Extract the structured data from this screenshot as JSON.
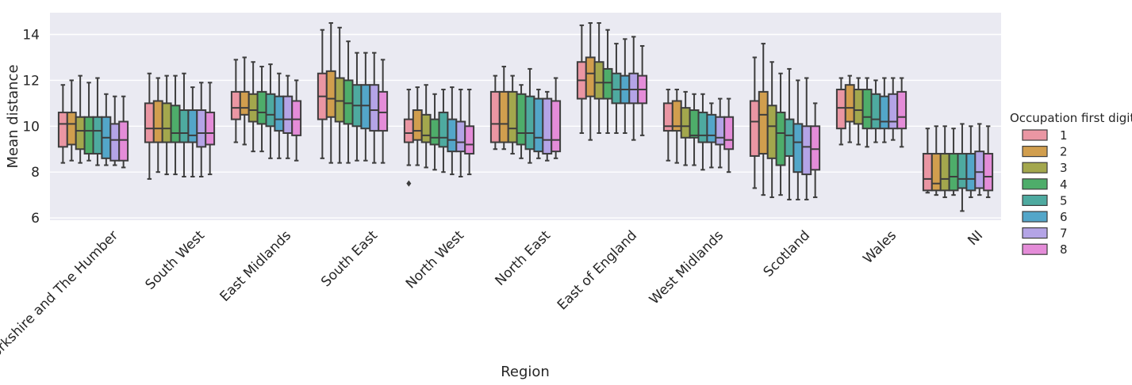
{
  "chart_data": {
    "type": "box",
    "xlabel": "Region",
    "ylabel": "Mean distance",
    "ylim": [
      5.9,
      14.95
    ],
    "yticks": [
      6,
      8,
      10,
      12,
      14
    ],
    "grid": true,
    "legend": {
      "title": "Occupation first digit",
      "placement": "right",
      "entries": [
        "1",
        "2",
        "3",
        "4",
        "5",
        "6",
        "7",
        "8"
      ]
    },
    "series_colors": [
      "#ea96a3",
      "#d19e4e",
      "#a3a74d",
      "#4ead6a",
      "#4eaaa0",
      "#53a6c9",
      "#b4a4e6",
      "#e48cd8"
    ],
    "box_fields": [
      "whisker_low",
      "q1",
      "median",
      "q3",
      "whisker_high"
    ],
    "categories": [
      {
        "name": "Yorkshire and The Humber",
        "boxes": [
          [
            8.4,
            9.1,
            10.1,
            10.6,
            11.8
          ],
          [
            8.5,
            9.2,
            10.1,
            10.6,
            12.0
          ],
          [
            8.4,
            9.0,
            9.8,
            10.4,
            12.2
          ],
          [
            8.5,
            8.8,
            9.8,
            10.4,
            11.9
          ],
          [
            8.3,
            8.8,
            9.8,
            10.4,
            12.1
          ],
          [
            8.3,
            8.6,
            9.5,
            10.4,
            11.4
          ],
          [
            8.3,
            8.5,
            9.4,
            10.1,
            11.3
          ],
          [
            8.2,
            8.5,
            9.4,
            10.2,
            11.3
          ]
        ],
        "outliers": [
          [],
          [],
          [],
          [],
          [],
          [],
          [],
          []
        ]
      },
      {
        "name": "South West",
        "boxes": [
          [
            7.7,
            9.3,
            9.9,
            11.0,
            12.3
          ],
          [
            8.0,
            9.3,
            9.9,
            11.1,
            12.1
          ],
          [
            7.9,
            9.3,
            9.9,
            11.0,
            12.2
          ],
          [
            7.9,
            9.3,
            9.7,
            10.9,
            12.2
          ],
          [
            7.8,
            9.3,
            9.7,
            10.7,
            12.3
          ],
          [
            7.8,
            9.3,
            9.6,
            10.7,
            11.7
          ],
          [
            7.8,
            9.1,
            9.7,
            10.7,
            11.9
          ],
          [
            7.9,
            9.2,
            9.7,
            10.6,
            11.9
          ]
        ],
        "outliers": [
          [],
          [],
          [],
          [],
          [],
          [],
          [],
          []
        ]
      },
      {
        "name": "East Midlands",
        "boxes": [
          [
            9.3,
            10.3,
            10.8,
            11.5,
            12.9
          ],
          [
            9.2,
            10.5,
            10.8,
            11.5,
            13.0
          ],
          [
            8.9,
            10.2,
            10.7,
            11.4,
            12.8
          ],
          [
            8.9,
            10.1,
            10.6,
            11.5,
            12.6
          ],
          [
            8.6,
            10.0,
            10.5,
            11.4,
            12.7
          ],
          [
            8.6,
            9.8,
            10.3,
            11.3,
            12.3
          ],
          [
            8.6,
            9.7,
            10.3,
            11.3,
            12.2
          ],
          [
            8.5,
            9.6,
            10.3,
            11.1,
            12.0
          ]
        ],
        "outliers": [
          [],
          [],
          [],
          [],
          [],
          [],
          [],
          []
        ]
      },
      {
        "name": "South East",
        "boxes": [
          [
            8.6,
            10.3,
            11.3,
            12.3,
            14.2
          ],
          [
            8.4,
            10.4,
            11.2,
            12.4,
            14.5
          ],
          [
            8.4,
            10.2,
            11.1,
            12.1,
            14.3
          ],
          [
            8.4,
            10.1,
            11.0,
            12.0,
            13.7
          ],
          [
            8.5,
            10.0,
            10.9,
            11.8,
            13.2
          ],
          [
            8.5,
            9.9,
            10.9,
            11.8,
            13.2
          ],
          [
            8.4,
            9.8,
            10.7,
            11.8,
            13.2
          ],
          [
            8.4,
            9.8,
            10.6,
            11.5,
            12.9
          ]
        ],
        "outliers": [
          [],
          [],
          [],
          [],
          [],
          [],
          [],
          []
        ]
      },
      {
        "name": "North West",
        "boxes": [
          [
            8.3,
            9.3,
            9.7,
            10.3,
            11.6
          ],
          [
            8.3,
            9.4,
            9.8,
            10.7,
            11.7
          ],
          [
            8.2,
            9.3,
            9.6,
            10.5,
            11.8
          ],
          [
            8.1,
            9.2,
            9.5,
            10.3,
            11.4
          ],
          [
            8.0,
            9.1,
            9.5,
            10.6,
            11.6
          ],
          [
            7.9,
            8.9,
            9.4,
            10.3,
            11.7
          ],
          [
            7.8,
            8.9,
            9.3,
            10.2,
            11.6
          ],
          [
            7.9,
            8.8,
            9.2,
            10.0,
            11.6
          ]
        ],
        "outliers": [
          [
            7.5
          ],
          [],
          [],
          [],
          [],
          [],
          [],
          []
        ]
      },
      {
        "name": "North East",
        "boxes": [
          [
            9.0,
            9.3,
            10.1,
            11.5,
            12.2
          ],
          [
            9.0,
            9.3,
            10.1,
            11.5,
            12.6
          ],
          [
            8.8,
            9.3,
            9.9,
            11.5,
            12.2
          ],
          [
            8.6,
            9.2,
            9.7,
            11.4,
            11.8
          ],
          [
            8.4,
            9.0,
            9.7,
            11.3,
            12.5
          ],
          [
            8.6,
            8.9,
            9.5,
            11.2,
            11.6
          ],
          [
            8.5,
            8.8,
            9.4,
            11.2,
            11.5
          ],
          [
            8.6,
            8.9,
            9.4,
            11.1,
            12.1
          ]
        ],
        "outliers": [
          [],
          [],
          [],
          [],
          [],
          [],
          [],
          []
        ]
      },
      {
        "name": "East of England",
        "boxes": [
          [
            9.7,
            11.2,
            12.0,
            12.8,
            14.4
          ],
          [
            9.4,
            11.3,
            12.3,
            13.0,
            14.5
          ],
          [
            9.7,
            11.2,
            11.9,
            12.8,
            14.5
          ],
          [
            9.7,
            11.2,
            11.9,
            12.5,
            14.2
          ],
          [
            9.7,
            11.0,
            11.6,
            12.3,
            13.6
          ],
          [
            9.7,
            11.0,
            11.6,
            12.2,
            13.8
          ],
          [
            9.4,
            11.0,
            11.6,
            12.3,
            13.9
          ],
          [
            9.6,
            11.0,
            11.6,
            12.2,
            13.5
          ]
        ],
        "outliers": [
          [],
          [],
          [],
          [],
          [],
          [],
          [],
          []
        ]
      },
      {
        "name": "West Midlands",
        "boxes": [
          [
            8.5,
            9.8,
            10.0,
            11.0,
            11.6
          ],
          [
            8.4,
            9.8,
            10.0,
            11.1,
            11.6
          ],
          [
            8.3,
            9.5,
            10.0,
            10.8,
            11.5
          ],
          [
            8.3,
            9.5,
            9.6,
            10.7,
            11.4
          ],
          [
            8.1,
            9.3,
            9.6,
            10.6,
            11.4
          ],
          [
            8.2,
            9.3,
            9.6,
            10.5,
            11.0
          ],
          [
            8.2,
            9.2,
            9.5,
            10.4,
            11.2
          ],
          [
            8.0,
            9.0,
            9.4,
            10.4,
            11.2
          ]
        ],
        "outliers": [
          [],
          [],
          [],
          [],
          [],
          [],
          [],
          []
        ]
      },
      {
        "name": "Scotland",
        "boxes": [
          [
            7.3,
            8.7,
            10.2,
            11.1,
            13.0
          ],
          [
            7.0,
            8.8,
            10.5,
            11.5,
            13.6
          ],
          [
            6.9,
            8.6,
            10.0,
            10.9,
            12.8
          ],
          [
            7.0,
            8.3,
            9.7,
            10.6,
            12.3
          ],
          [
            6.8,
            8.7,
            9.6,
            10.3,
            12.5
          ],
          [
            6.8,
            8.0,
            9.3,
            10.1,
            12.0
          ],
          [
            6.8,
            7.9,
            9.1,
            10.0,
            12.1
          ],
          [
            6.9,
            8.1,
            9.0,
            10.0,
            11.0
          ]
        ],
        "outliers": [
          [],
          [],
          [],
          [],
          [],
          [],
          [],
          []
        ]
      },
      {
        "name": "Wales",
        "boxes": [
          [
            9.2,
            9.9,
            10.8,
            11.6,
            12.1
          ],
          [
            9.3,
            10.2,
            10.8,
            11.8,
            12.2
          ],
          [
            9.2,
            10.1,
            10.7,
            11.6,
            12.1
          ],
          [
            9.1,
            9.9,
            10.4,
            11.6,
            12.1
          ],
          [
            9.3,
            9.9,
            10.3,
            11.4,
            12.0
          ],
          [
            9.3,
            9.9,
            10.2,
            11.3,
            12.1
          ],
          [
            9.4,
            9.9,
            10.2,
            11.4,
            12.1
          ],
          [
            9.1,
            9.9,
            10.4,
            11.5,
            12.1
          ]
        ],
        "outliers": [
          [],
          [],
          [],
          [],
          [],
          [],
          [],
          []
        ]
      },
      {
        "name": "NI",
        "boxes": [
          [
            7.1,
            7.2,
            7.7,
            8.8,
            9.9
          ],
          [
            7.0,
            7.2,
            7.5,
            8.8,
            10.0
          ],
          [
            6.9,
            7.2,
            7.7,
            8.8,
            10.0
          ],
          [
            7.0,
            7.2,
            7.8,
            8.8,
            9.9
          ],
          [
            6.3,
            7.3,
            7.7,
            8.8,
            10.1
          ],
          [
            6.9,
            7.2,
            7.7,
            8.8,
            10.0
          ],
          [
            7.0,
            7.3,
            8.0,
            8.9,
            10.1
          ],
          [
            6.9,
            7.2,
            7.8,
            8.8,
            10.0
          ]
        ],
        "outliers": [
          [],
          [],
          [],
          [],
          [],
          [],
          [],
          []
        ]
      }
    ]
  }
}
